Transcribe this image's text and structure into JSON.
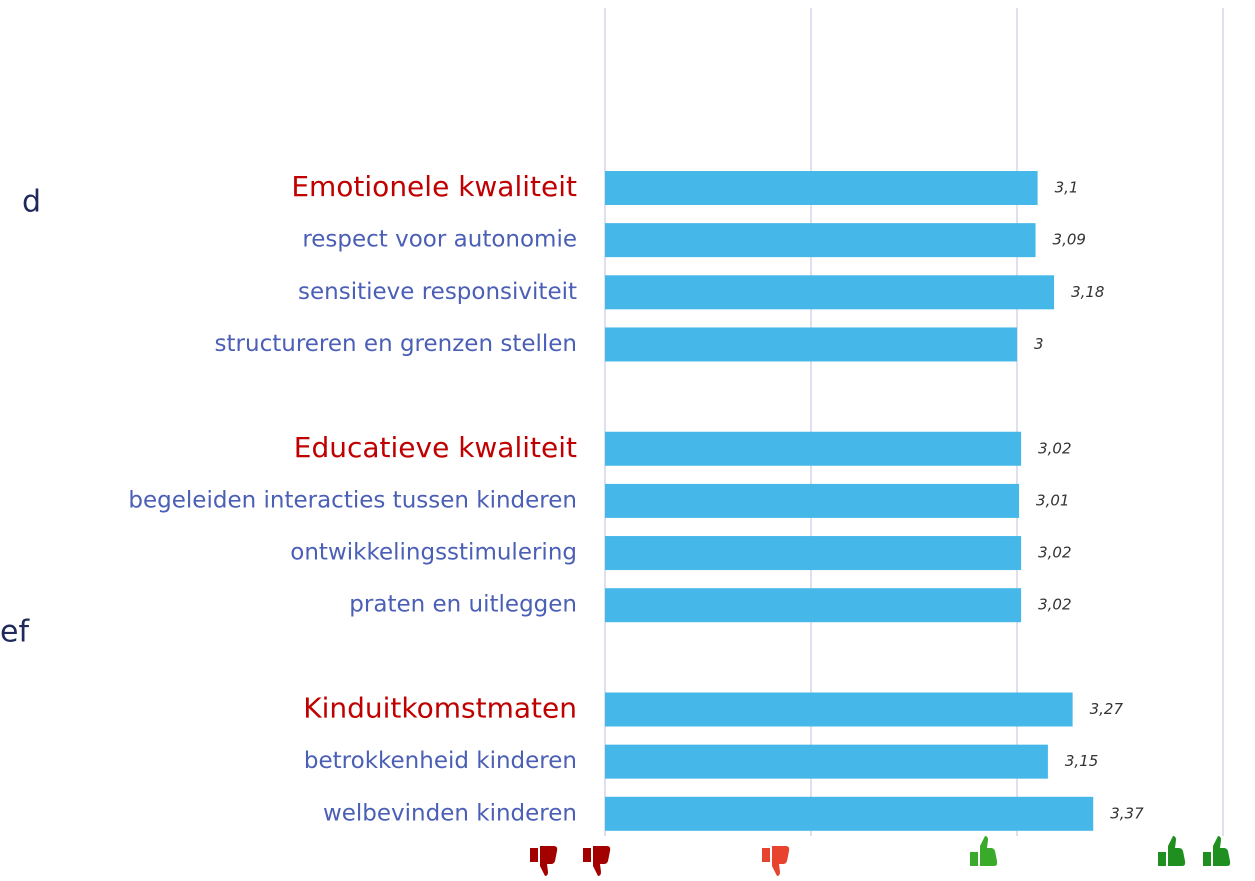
{
  "fragments": [
    "d",
    "ef"
  ],
  "chart_data": {
    "type": "bar",
    "orientation": "horizontal",
    "color": "#45b7e8",
    "header_color": "#c00000",
    "label_color": "#4a5fb5",
    "xlim": [
      1,
      4
    ],
    "xticks": [
      1,
      2,
      3,
      4
    ],
    "grid": true,
    "groups": [
      {
        "label": "Emotionele kwaliteit",
        "value": 3.1,
        "value_label": "3,1",
        "categories": [
          "respect voor autonomie",
          "sensitieve responsiviteit",
          "structureren en grenzen stellen"
        ],
        "values": [
          3.09,
          3.18,
          3
        ],
        "value_labels": [
          "3,09",
          "3,18",
          "3"
        ]
      },
      {
        "label": "Educatieve kwaliteit",
        "value": 3.02,
        "value_label": "3,02",
        "categories": [
          "begeleiden interacties tussen kinderen",
          "ontwikkelingsstimulering",
          "praten en uitleggen"
        ],
        "values": [
          3.01,
          3.02,
          3.02
        ],
        "value_labels": [
          "3,01",
          "3,02",
          "3,02"
        ]
      },
      {
        "label": "Kinduitkomstmaten",
        "value": 3.27,
        "value_label": "3,27",
        "categories": [
          "betrokkenheid kinderen",
          "welbevinden kinderen"
        ],
        "values": [
          3.15,
          3.37
        ],
        "value_labels": [
          "3,15",
          "3,37"
        ]
      }
    ]
  }
}
